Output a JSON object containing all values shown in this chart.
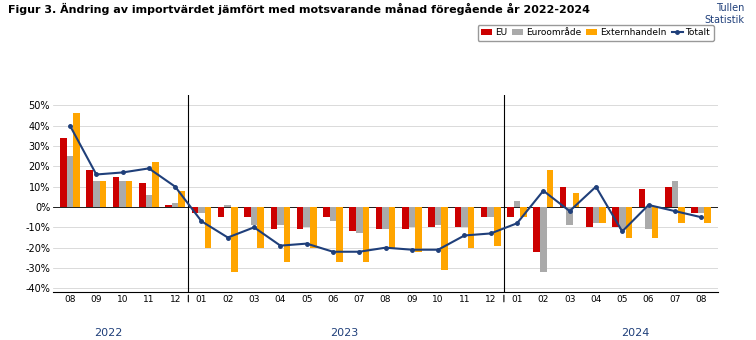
{
  "title": "Figur 3. Ändring av importvärdet jämfört med motsvarande månad föregående år 2022-2024",
  "watermark": "Tullen\nStatistik",
  "categories": [
    "08",
    "09",
    "10",
    "11",
    "12",
    "01",
    "02",
    "03",
    "04",
    "05",
    "06",
    "07",
    "08",
    "09",
    "10",
    "11",
    "12",
    "01",
    "02",
    "03",
    "04",
    "05",
    "06",
    "07",
    "08"
  ],
  "year_labels": [
    [
      "2022",
      2.0
    ],
    [
      "2023",
      10.5
    ],
    [
      "2024",
      21.0
    ]
  ],
  "year_dividers": [
    4.5,
    16.5
  ],
  "EU": [
    34,
    18,
    15,
    12,
    1,
    -3,
    -5,
    -5,
    -11,
    -11,
    -5,
    -12,
    -11,
    -11,
    -10,
    -10,
    -5,
    -5,
    -22,
    10,
    -10,
    -10,
    9,
    10,
    -3
  ],
  "Euroomrade": [
    25,
    13,
    13,
    6,
    2,
    -3,
    1,
    -9,
    -9,
    -10,
    -7,
    -13,
    -11,
    -10,
    -9,
    -10,
    -5,
    3,
    -32,
    -9,
    -8,
    -11,
    -11,
    13,
    -3
  ],
  "Externhandeln": [
    46,
    13,
    13,
    22,
    8,
    -20,
    -32,
    -20,
    -27,
    -20,
    -27,
    -27,
    -20,
    -22,
    -31,
    -20,
    -19,
    -5,
    18,
    7,
    -8,
    -15,
    -15,
    -8,
    -8
  ],
  "Totalt": [
    40,
    16,
    17,
    19,
    10,
    -7,
    -15,
    -10,
    -19,
    -18,
    -22,
    -22,
    -20,
    -21,
    -21,
    -14,
    -13,
    -8,
    8,
    -2,
    10,
    -12,
    1,
    -2,
    -5
  ],
  "EU_color": "#CC0000",
  "Euro_color": "#AAAAAA",
  "Extern_color": "#FFA500",
  "Total_color": "#1F3F7A",
  "ylim": [
    -42,
    55
  ],
  "yticks": [
    -40,
    -30,
    -20,
    -10,
    0,
    10,
    20,
    30,
    40,
    50
  ],
  "ytick_labels": [
    "-40%",
    "-30%",
    "-20%",
    "-10%",
    "0%",
    "10%",
    "20%",
    "30%",
    "40%",
    "50%"
  ],
  "bar_width": 0.25
}
